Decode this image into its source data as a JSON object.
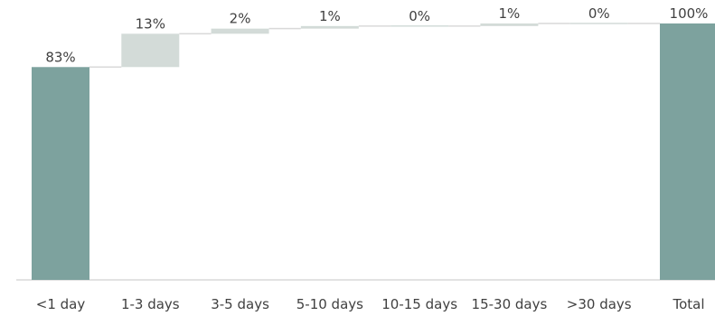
{
  "chart_data": {
    "type": "waterfall",
    "categories": [
      "<1 day",
      "1-3 days",
      "3-5 days",
      "5-10 days",
      "10-15 days",
      "15-30 days",
      ">30 days",
      "Total"
    ],
    "values": [
      83,
      13,
      2,
      1,
      0,
      1,
      0,
      100
    ],
    "labels": [
      "83%",
      "13%",
      "2%",
      "1%",
      "0%",
      "1%",
      "0%",
      "100%"
    ],
    "bar_kinds": [
      "total",
      "increment",
      "increment",
      "increment",
      "increment",
      "increment",
      "increment",
      "total"
    ],
    "ylim": [
      0,
      100
    ],
    "grid": false,
    "colors": {
      "total": "#7da29e",
      "increment": "#d3dbd8",
      "connector": "#d9d9d9",
      "axis": "#d9d9d9"
    }
  }
}
